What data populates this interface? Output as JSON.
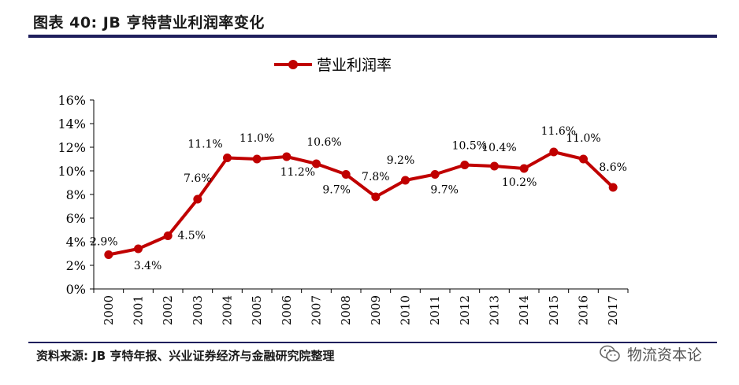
{
  "header": {
    "title": "图表 40: JB 亨特营业利润率变化"
  },
  "footer": {
    "source": "资料来源: JB 亨特年报、兴业证券经济与金融研究院整理",
    "watermark": "物流资本论"
  },
  "colors": {
    "series": "#c00000",
    "rule": "#1f1f5c"
  },
  "icons": {
    "watermark_icon": "wechat-icon"
  },
  "chart_data": {
    "type": "line",
    "title": "",
    "xlabel": "",
    "ylabel": "",
    "x": [
      "2000",
      "2001",
      "2002",
      "2003",
      "2004",
      "2005",
      "2006",
      "2007",
      "2008",
      "2009",
      "2010",
      "2011",
      "2012",
      "2013",
      "2014",
      "2015",
      "2016",
      "2017"
    ],
    "series": [
      {
        "name": "营业利润率",
        "values": [
          2.9,
          3.4,
          4.5,
          7.6,
          11.1,
          11.0,
          11.2,
          10.6,
          9.7,
          7.8,
          9.2,
          9.7,
          10.5,
          10.4,
          10.2,
          11.6,
          11.0,
          8.6
        ],
        "labels": [
          "2.9%",
          "3.4%",
          "4.5%",
          "7.6%",
          "11.1%",
          "11.0%",
          "11.2%",
          "10.6%",
          "9.7%",
          "7.8%",
          "9.2%",
          "9.7%",
          "10.5%",
          "10.4%",
          "10.2%",
          "11.6%",
          "11.0%",
          "8.6%"
        ]
      }
    ],
    "ylim": [
      0,
      16
    ],
    "yticks": [
      "0%",
      "2%",
      "4%",
      "6%",
      "8%",
      "10%",
      "12%",
      "14%",
      "16%"
    ],
    "grid": false,
    "legend": "top-center"
  }
}
